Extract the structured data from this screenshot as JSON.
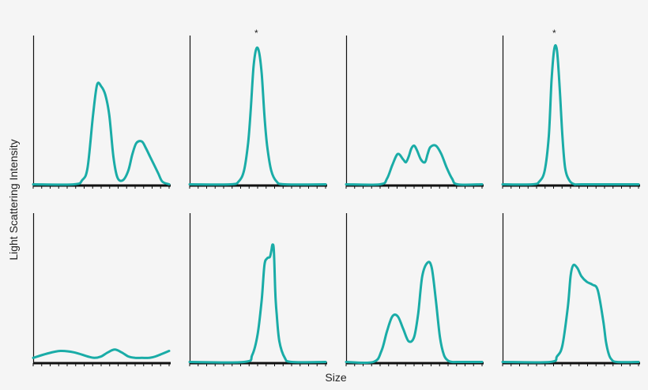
{
  "figure": {
    "ylabel": "Light Scattering Intensity",
    "xlabel": "Size",
    "line_color": "#1aaca7",
    "axis_color": "#111111",
    "background": "#f5f5f5"
  },
  "chart_data": [
    {
      "type": "line",
      "row": 1,
      "col": 1,
      "annotation": "",
      "x": [
        0.0,
        0.3,
        0.36,
        0.4,
        0.44,
        0.47,
        0.5,
        0.53,
        0.56,
        0.59,
        0.62,
        0.66,
        0.7,
        0.73,
        0.76,
        0.8,
        0.83,
        0.86,
        0.89,
        0.92,
        0.95,
        1.0
      ],
      "y": [
        0,
        0,
        0.03,
        0.12,
        0.5,
        0.72,
        0.71,
        0.65,
        0.5,
        0.2,
        0.05,
        0.03,
        0.1,
        0.22,
        0.3,
        0.31,
        0.26,
        0.2,
        0.14,
        0.08,
        0.02,
        0
      ]
    },
    {
      "type": "line",
      "row": 1,
      "col": 2,
      "annotation": "*",
      "x": [
        0.0,
        0.3,
        0.36,
        0.4,
        0.43,
        0.45,
        0.47,
        0.49,
        0.51,
        0.53,
        0.55,
        0.57,
        0.6,
        0.64,
        0.7,
        1.0
      ],
      "y": [
        0,
        0,
        0.02,
        0.1,
        0.3,
        0.55,
        0.85,
        0.98,
        0.96,
        0.8,
        0.5,
        0.28,
        0.1,
        0.02,
        0,
        0
      ]
    },
    {
      "type": "line",
      "row": 1,
      "col": 3,
      "annotation": "",
      "x": [
        0.0,
        0.25,
        0.3,
        0.34,
        0.38,
        0.42,
        0.44,
        0.46,
        0.48,
        0.5,
        0.52,
        0.55,
        0.58,
        0.6,
        0.62,
        0.66,
        0.7,
        0.74,
        0.78,
        0.82,
        1.0
      ],
      "y": [
        0,
        0,
        0.04,
        0.14,
        0.22,
        0.18,
        0.16,
        0.2,
        0.26,
        0.28,
        0.25,
        0.18,
        0.16,
        0.22,
        0.27,
        0.28,
        0.22,
        0.12,
        0.04,
        0,
        0
      ]
    },
    {
      "type": "line",
      "row": 1,
      "col": 4,
      "annotation": "*",
      "x": [
        0.0,
        0.22,
        0.27,
        0.31,
        0.34,
        0.36,
        0.38,
        0.4,
        0.42,
        0.44,
        0.46,
        0.49,
        0.53,
        0.58,
        1.0
      ],
      "y": [
        0,
        0,
        0.02,
        0.1,
        0.35,
        0.75,
        0.98,
        0.97,
        0.7,
        0.35,
        0.12,
        0.03,
        0,
        0,
        0
      ]
    },
    {
      "type": "line",
      "row": 2,
      "col": 1,
      "annotation": "",
      "x": [
        0.0,
        0.1,
        0.2,
        0.3,
        0.4,
        0.45,
        0.5,
        0.55,
        0.6,
        0.65,
        0.7,
        0.75,
        0.8,
        0.85,
        0.9,
        1.0
      ],
      "y": [
        0.03,
        0.06,
        0.08,
        0.07,
        0.04,
        0.03,
        0.04,
        0.07,
        0.09,
        0.07,
        0.04,
        0.03,
        0.03,
        0.03,
        0.04,
        0.08
      ]
    },
    {
      "type": "line",
      "row": 2,
      "col": 2,
      "annotation": "",
      "x": [
        0.0,
        0.4,
        0.46,
        0.5,
        0.53,
        0.55,
        0.57,
        0.59,
        0.6,
        0.61,
        0.62,
        0.63,
        0.64,
        0.66,
        0.7,
        0.75,
        1.0
      ],
      "y": [
        0,
        0,
        0.05,
        0.2,
        0.45,
        0.7,
        0.75,
        0.76,
        0.8,
        0.85,
        0.8,
        0.5,
        0.35,
        0.15,
        0.03,
        0,
        0
      ]
    },
    {
      "type": "line",
      "row": 2,
      "col": 3,
      "annotation": "",
      "x": [
        0.0,
        0.2,
        0.26,
        0.3,
        0.34,
        0.38,
        0.42,
        0.46,
        0.5,
        0.53,
        0.56,
        0.6,
        0.63,
        0.66,
        0.69,
        0.72,
        0.75,
        0.78,
        0.82,
        1.0
      ],
      "y": [
        0,
        0,
        0.08,
        0.22,
        0.33,
        0.33,
        0.24,
        0.15,
        0.18,
        0.35,
        0.62,
        0.72,
        0.68,
        0.45,
        0.18,
        0.05,
        0.01,
        0,
        0,
        0
      ]
    },
    {
      "type": "line",
      "row": 2,
      "col": 4,
      "annotation": "",
      "x": [
        0.0,
        0.35,
        0.4,
        0.44,
        0.48,
        0.5,
        0.52,
        0.55,
        0.58,
        0.62,
        0.66,
        0.7,
        0.74,
        0.76,
        0.78,
        0.8,
        0.84,
        1.0
      ],
      "y": [
        0,
        0,
        0.04,
        0.12,
        0.4,
        0.62,
        0.7,
        0.68,
        0.62,
        0.58,
        0.56,
        0.52,
        0.3,
        0.15,
        0.06,
        0.02,
        0,
        0
      ]
    }
  ]
}
